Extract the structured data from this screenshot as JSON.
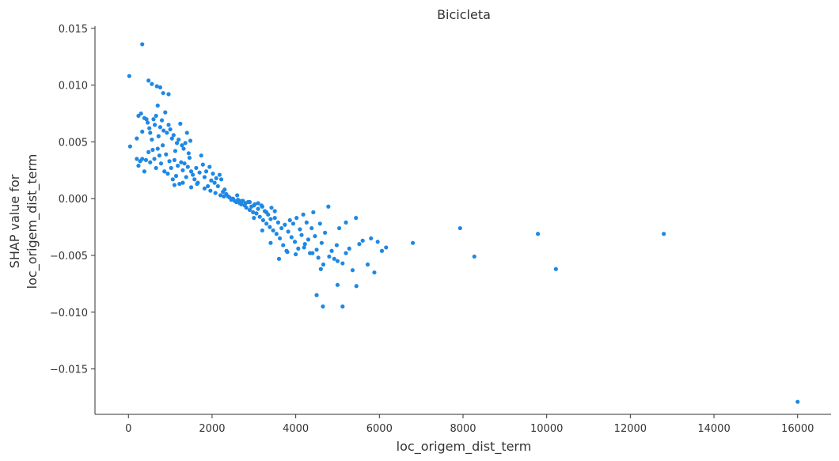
{
  "chart_data": {
    "type": "scatter",
    "title": "Bicicleta",
    "xlabel": "loc_origem_dist_term",
    "ylabel_lines": [
      "SHAP value for",
      "loc_origem_dist_term"
    ],
    "xlim": [
      -800,
      16800
    ],
    "ylim": [
      -0.019,
      0.0152
    ],
    "xticks": [
      0,
      2000,
      4000,
      6000,
      8000,
      10000,
      12000,
      14000,
      16000
    ],
    "xtick_labels": [
      "0",
      "2000",
      "4000",
      "6000",
      "8000",
      "10000",
      "12000",
      "14000",
      "16000"
    ],
    "yticks": [
      0.015,
      0.01,
      0.005,
      0.0,
      -0.005,
      -0.01,
      -0.015
    ],
    "ytick_labels": [
      "0.015",
      "0.010",
      "0.005",
      "0.000",
      "−0.005",
      "−0.010",
      "−0.015"
    ],
    "grid": false,
    "point_color": "#1e88e5",
    "points": [
      [
        20,
        0.0108
      ],
      [
        330,
        0.0136
      ],
      [
        480,
        0.0104
      ],
      [
        560,
        0.0101
      ],
      [
        680,
        0.0099
      ],
      [
        760,
        0.0098
      ],
      [
        830,
        0.0093
      ],
      [
        960,
        0.0092
      ],
      [
        40,
        0.0046
      ],
      [
        200,
        0.0053
      ],
      [
        240,
        0.0073
      ],
      [
        300,
        0.0075
      ],
      [
        330,
        0.0059
      ],
      [
        380,
        0.0071
      ],
      [
        430,
        0.007
      ],
      [
        460,
        0.0067
      ],
      [
        500,
        0.0062
      ],
      [
        520,
        0.0058
      ],
      [
        560,
        0.0052
      ],
      [
        600,
        0.007
      ],
      [
        630,
        0.0065
      ],
      [
        660,
        0.0073
      ],
      [
        700,
        0.0082
      ],
      [
        720,
        0.0055
      ],
      [
        760,
        0.0063
      ],
      [
        800,
        0.0069
      ],
      [
        840,
        0.006
      ],
      [
        880,
        0.0076
      ],
      [
        920,
        0.0058
      ],
      [
        960,
        0.0065
      ],
      [
        1000,
        0.0061
      ],
      [
        1040,
        0.0053
      ],
      [
        1080,
        0.0056
      ],
      [
        1120,
        0.0042
      ],
      [
        1160,
        0.0049
      ],
      [
        1200,
        0.0052
      ],
      [
        1240,
        0.0066
      ],
      [
        1280,
        0.0047
      ],
      [
        1320,
        0.0044
      ],
      [
        1360,
        0.0049
      ],
      [
        1400,
        0.0058
      ],
      [
        1440,
        0.004
      ],
      [
        1480,
        0.0051
      ],
      [
        200,
        0.0035
      ],
      [
        240,
        0.0029
      ],
      [
        280,
        0.0033
      ],
      [
        330,
        0.0035
      ],
      [
        380,
        0.0024
      ],
      [
        420,
        0.0034
      ],
      [
        480,
        0.0041
      ],
      [
        520,
        0.0032
      ],
      [
        580,
        0.0043
      ],
      [
        620,
        0.0035
      ],
      [
        660,
        0.0027
      ],
      [
        700,
        0.0044
      ],
      [
        740,
        0.0038
      ],
      [
        780,
        0.0031
      ],
      [
        820,
        0.0047
      ],
      [
        860,
        0.0024
      ],
      [
        900,
        0.0039
      ],
      [
        940,
        0.0022
      ],
      [
        980,
        0.0033
      ],
      [
        1020,
        0.0027
      ],
      [
        1060,
        0.0017
      ],
      [
        1100,
        0.0034
      ],
      [
        1140,
        0.002
      ],
      [
        1180,
        0.0029
      ],
      [
        1220,
        0.0013
      ],
      [
        1260,
        0.0032
      ],
      [
        1300,
        0.0025
      ],
      [
        1340,
        0.0031
      ],
      [
        1380,
        0.0019
      ],
      [
        1420,
        0.0028
      ],
      [
        1460,
        0.0036
      ],
      [
        1500,
        0.0024
      ],
      [
        1540,
        0.0021
      ],
      [
        1580,
        0.0017
      ],
      [
        1620,
        0.0027
      ],
      [
        1660,
        0.0014
      ],
      [
        1700,
        0.0023
      ],
      [
        1740,
        0.0038
      ],
      [
        1780,
        0.003
      ],
      [
        1820,
        0.0019
      ],
      [
        1860,
        0.0024
      ],
      [
        1900,
        0.0011
      ],
      [
        1940,
        0.0028
      ],
      [
        1980,
        0.0016
      ],
      [
        2020,
        0.0022
      ],
      [
        2060,
        0.0014
      ],
      [
        2100,
        0.0018
      ],
      [
        2140,
        0.0011
      ],
      [
        2180,
        0.0021
      ],
      [
        2220,
        0.0017
      ],
      [
        2260,
        0.0006
      ],
      [
        2300,
        0.0008
      ],
      [
        1100,
        0.0012
      ],
      [
        1300,
        0.0014
      ],
      [
        1500,
        0.001
      ],
      [
        1640,
        0.0013
      ],
      [
        1820,
        0.0009
      ],
      [
        1960,
        0.0007
      ],
      [
        2080,
        0.0005
      ],
      [
        2200,
        0.0003
      ],
      [
        2280,
        0.0002
      ],
      [
        2340,
        0.0004
      ],
      [
        2380,
        0.0002
      ],
      [
        2420,
        0.0001
      ],
      [
        2460,
        -0.0001
      ],
      [
        2500,
        0.0
      ],
      [
        2540,
        -0.0002
      ],
      [
        2580,
        -0.0003
      ],
      [
        2620,
        -0.0001
      ],
      [
        2660,
        -0.0004
      ],
      [
        2700,
        -0.0005
      ],
      [
        2740,
        -0.0002
      ],
      [
        2780,
        -0.0006
      ],
      [
        2820,
        -0.0008
      ],
      [
        2860,
        -0.0003
      ],
      [
        2900,
        -0.001
      ],
      [
        2940,
        -0.0007
      ],
      [
        2980,
        -0.0012
      ],
      [
        3020,
        -0.0005
      ],
      [
        3060,
        -0.0013
      ],
      [
        3100,
        -0.0009
      ],
      [
        3140,
        -0.0016
      ],
      [
        3180,
        -0.0006
      ],
      [
        3220,
        -0.0019
      ],
      [
        3260,
        -0.0011
      ],
      [
        3300,
        -0.0022
      ],
      [
        3340,
        -0.0014
      ],
      [
        3380,
        -0.0025
      ],
      [
        3420,
        -0.0008
      ],
      [
        3460,
        -0.0028
      ],
      [
        3500,
        -0.0017
      ],
      [
        3540,
        -0.0031
      ],
      [
        3580,
        -0.0021
      ],
      [
        3620,
        -0.0035
      ],
      [
        3660,
        -0.0026
      ],
      [
        3700,
        -0.0041
      ],
      [
        3740,
        -0.0023
      ],
      [
        3780,
        -0.0046
      ],
      [
        3820,
        -0.0029
      ],
      [
        3860,
        -0.0019
      ],
      [
        3900,
        -0.0034
      ],
      [
        3940,
        -0.0022
      ],
      [
        3980,
        -0.0038
      ],
      [
        4020,
        -0.0017
      ],
      [
        4060,
        -0.0044
      ],
      [
        4100,
        -0.0027
      ],
      [
        4140,
        -0.0032
      ],
      [
        4180,
        -0.0014
      ],
      [
        4220,
        -0.004
      ],
      [
        4260,
        -0.0021
      ],
      [
        4300,
        -0.0036
      ],
      [
        4340,
        -0.0048
      ],
      [
        4380,
        -0.0026
      ],
      [
        4420,
        -0.0012
      ],
      [
        4460,
        -0.0033
      ],
      [
        4500,
        -0.0045
      ],
      [
        4540,
        -0.0052
      ],
      [
        4580,
        -0.0022
      ],
      [
        4620,
        -0.0039
      ],
      [
        4660,
        -0.0058
      ],
      [
        4700,
        -0.003
      ],
      [
        4780,
        -0.0007
      ],
      [
        4860,
        -0.0046
      ],
      [
        4920,
        -0.0053
      ],
      [
        4980,
        -0.0041
      ],
      [
        5040,
        -0.0026
      ],
      [
        5120,
        -0.0057
      ],
      [
        5200,
        -0.0021
      ],
      [
        5280,
        -0.0044
      ],
      [
        5360,
        -0.0063
      ],
      [
        5440,
        -0.0017
      ],
      [
        5520,
        -0.004
      ],
      [
        5600,
        -0.0037
      ],
      [
        5720,
        -0.0058
      ],
      [
        5800,
        -0.0035
      ],
      [
        5880,
        -0.0065
      ],
      [
        5960,
        -0.0038
      ],
      [
        6060,
        -0.0046
      ],
      [
        6160,
        -0.0043
      ],
      [
        6800,
        -0.0039
      ],
      [
        3000,
        -0.0017
      ],
      [
        3200,
        -0.0028
      ],
      [
        3400,
        -0.0039
      ],
      [
        3600,
        -0.0053
      ],
      [
        3800,
        -0.0047
      ],
      [
        4000,
        -0.0049
      ],
      [
        4200,
        -0.0043
      ],
      [
        4400,
        -0.0048
      ],
      [
        4600,
        -0.0062
      ],
      [
        4800,
        -0.0051
      ],
      [
        5000,
        -0.0055
      ],
      [
        5200,
        -0.0048
      ],
      [
        4500,
        -0.0085
      ],
      [
        4650,
        -0.0095
      ],
      [
        5000,
        -0.0076
      ],
      [
        5120,
        -0.0095
      ],
      [
        5450,
        -0.0077
      ],
      [
        2600,
        0.0003
      ],
      [
        2700,
        -0.0002
      ],
      [
        2800,
        -0.0004
      ],
      [
        2900,
        -0.0003
      ],
      [
        3000,
        -0.0006
      ],
      [
        3100,
        -0.0004
      ],
      [
        3200,
        -0.0007
      ],
      [
        3300,
        -0.0012
      ],
      [
        3400,
        -0.0018
      ],
      [
        3500,
        -0.0011
      ],
      [
        7930,
        -0.0026
      ],
      [
        8270,
        -0.0051
      ],
      [
        9790,
        -0.0031
      ],
      [
        10220,
        -0.0062
      ],
      [
        12800,
        -0.0031
      ],
      [
        16000,
        -0.0179
      ]
    ]
  }
}
